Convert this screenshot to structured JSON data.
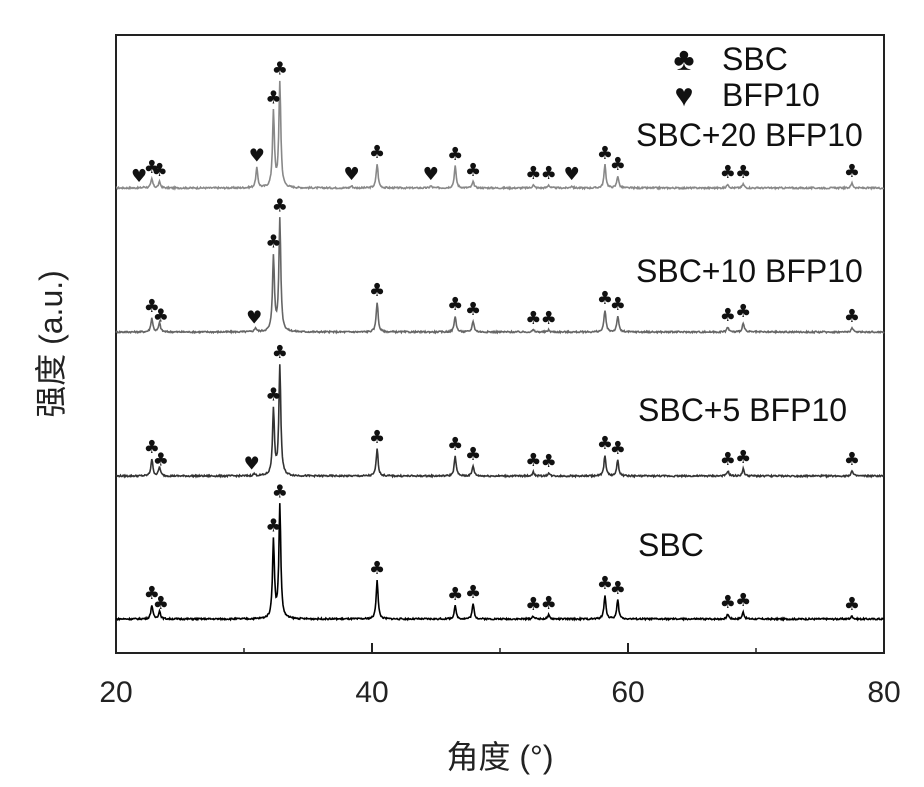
{
  "chart_data": {
    "type": "line",
    "title": "",
    "xlabel": "角度 (°)",
    "ylabel": "强度 (a.u.)",
    "xlim": [
      20,
      80
    ],
    "x_ticks": [
      20,
      40,
      60,
      80
    ],
    "x_tick_labels": [
      "20",
      "40",
      "60",
      "80"
    ],
    "y_ticks_shown": false,
    "grid": false,
    "legend": {
      "placement": "top-right",
      "entries": [
        {
          "symbol": "club",
          "glyph": "♣",
          "label": "SBC"
        },
        {
          "symbol": "heart",
          "glyph": "♥",
          "label": "BFP10"
        }
      ]
    },
    "series": [
      {
        "name": "SBC+20 BFP10",
        "color": "#888888",
        "baseline": 188,
        "peaks": [
          {
            "x": 22.2,
            "h": 1
          },
          {
            "x": 22.8,
            "h": 9
          },
          {
            "x": 23.4,
            "h": 6
          },
          {
            "x": 31.0,
            "h": 20
          },
          {
            "x": 32.3,
            "h": 75
          },
          {
            "x": 32.8,
            "h": 105
          },
          {
            "x": 38.4,
            "h": 2
          },
          {
            "x": 40.4,
            "h": 24
          },
          {
            "x": 44.6,
            "h": 2
          },
          {
            "x": 46.5,
            "h": 22
          },
          {
            "x": 47.9,
            "h": 6
          },
          {
            "x": 52.6,
            "h": 3
          },
          {
            "x": 53.8,
            "h": 3
          },
          {
            "x": 55.6,
            "h": 2
          },
          {
            "x": 58.2,
            "h": 23
          },
          {
            "x": 59.2,
            "h": 12
          },
          {
            "x": 67.8,
            "h": 4
          },
          {
            "x": 69.0,
            "h": 4
          },
          {
            "x": 77.5,
            "h": 5
          }
        ],
        "markers": [
          {
            "x": 21.8,
            "m": "heart"
          },
          {
            "x": 22.8,
            "m": "club"
          },
          {
            "x": 23.4,
            "m": "club"
          },
          {
            "x": 31.0,
            "m": "heart"
          },
          {
            "x": 32.3,
            "m": "club"
          },
          {
            "x": 32.8,
            "m": "club"
          },
          {
            "x": 38.4,
            "m": "heart"
          },
          {
            "x": 40.4,
            "m": "club"
          },
          {
            "x": 44.6,
            "m": "heart"
          },
          {
            "x": 46.5,
            "m": "club"
          },
          {
            "x": 47.9,
            "m": "club"
          },
          {
            "x": 52.6,
            "m": "club"
          },
          {
            "x": 53.8,
            "m": "club"
          },
          {
            "x": 55.6,
            "m": "heart"
          },
          {
            "x": 58.2,
            "m": "club"
          },
          {
            "x": 59.2,
            "m": "club"
          },
          {
            "x": 67.8,
            "m": "club"
          },
          {
            "x": 69.0,
            "m": "club"
          },
          {
            "x": 77.5,
            "m": "club"
          }
        ]
      },
      {
        "name": "SBC+10 BFP10",
        "color": "#666666",
        "baseline": 332,
        "peaks": [
          {
            "x": 22.8,
            "h": 14
          },
          {
            "x": 23.4,
            "h": 9
          },
          {
            "x": 30.9,
            "h": 4
          },
          {
            "x": 32.3,
            "h": 75
          },
          {
            "x": 32.8,
            "h": 112
          },
          {
            "x": 40.4,
            "h": 30
          },
          {
            "x": 46.5,
            "h": 16
          },
          {
            "x": 47.9,
            "h": 11
          },
          {
            "x": 52.6,
            "h": 2
          },
          {
            "x": 53.8,
            "h": 2
          },
          {
            "x": 58.2,
            "h": 22
          },
          {
            "x": 59.2,
            "h": 16
          },
          {
            "x": 67.8,
            "h": 5
          },
          {
            "x": 69.0,
            "h": 9
          },
          {
            "x": 77.5,
            "h": 4
          }
        ],
        "markers": [
          {
            "x": 22.8,
            "m": "club"
          },
          {
            "x": 23.5,
            "m": "club"
          },
          {
            "x": 30.8,
            "m": "heart"
          },
          {
            "x": 32.3,
            "m": "club"
          },
          {
            "x": 32.8,
            "m": "club"
          },
          {
            "x": 40.4,
            "m": "club"
          },
          {
            "x": 46.5,
            "m": "club"
          },
          {
            "x": 47.9,
            "m": "club"
          },
          {
            "x": 52.6,
            "m": "club"
          },
          {
            "x": 53.8,
            "m": "club"
          },
          {
            "x": 58.2,
            "m": "club"
          },
          {
            "x": 59.2,
            "m": "club"
          },
          {
            "x": 67.8,
            "m": "club"
          },
          {
            "x": 69.0,
            "m": "club"
          },
          {
            "x": 77.5,
            "m": "club"
          }
        ]
      },
      {
        "name": "SBC+5 BFP10",
        "color": "#333333",
        "baseline": 476,
        "peaks": [
          {
            "x": 22.8,
            "h": 17
          },
          {
            "x": 23.4,
            "h": 9
          },
          {
            "x": 30.8,
            "h": 2
          },
          {
            "x": 32.3,
            "h": 66
          },
          {
            "x": 32.8,
            "h": 110
          },
          {
            "x": 40.4,
            "h": 27
          },
          {
            "x": 46.5,
            "h": 20
          },
          {
            "x": 47.9,
            "h": 10
          },
          {
            "x": 52.6,
            "h": 4
          },
          {
            "x": 53.8,
            "h": 3
          },
          {
            "x": 58.2,
            "h": 21
          },
          {
            "x": 59.2,
            "h": 16
          },
          {
            "x": 67.8,
            "h": 5
          },
          {
            "x": 69.0,
            "h": 7
          },
          {
            "x": 77.5,
            "h": 5
          }
        ],
        "markers": [
          {
            "x": 22.8,
            "m": "club"
          },
          {
            "x": 23.5,
            "m": "club"
          },
          {
            "x": 30.6,
            "m": "heart"
          },
          {
            "x": 32.3,
            "m": "club"
          },
          {
            "x": 32.8,
            "m": "club"
          },
          {
            "x": 40.4,
            "m": "club"
          },
          {
            "x": 46.5,
            "m": "club"
          },
          {
            "x": 47.9,
            "m": "club"
          },
          {
            "x": 52.6,
            "m": "club"
          },
          {
            "x": 53.8,
            "m": "club"
          },
          {
            "x": 58.2,
            "m": "club"
          },
          {
            "x": 59.2,
            "m": "club"
          },
          {
            "x": 67.8,
            "m": "club"
          },
          {
            "x": 69.0,
            "m": "club"
          },
          {
            "x": 77.5,
            "m": "club"
          }
        ]
      },
      {
        "name": "SBC",
        "color": "#000000",
        "baseline": 619,
        "peaks": [
          {
            "x": 22.8,
            "h": 14
          },
          {
            "x": 23.4,
            "h": 8
          },
          {
            "x": 32.3,
            "h": 78
          },
          {
            "x": 32.8,
            "h": 113
          },
          {
            "x": 40.4,
            "h": 39
          },
          {
            "x": 46.5,
            "h": 13
          },
          {
            "x": 47.9,
            "h": 15
          },
          {
            "x": 52.6,
            "h": 3
          },
          {
            "x": 53.8,
            "h": 4
          },
          {
            "x": 58.2,
            "h": 24
          },
          {
            "x": 59.2,
            "h": 19
          },
          {
            "x": 67.8,
            "h": 5
          },
          {
            "x": 69.0,
            "h": 7
          },
          {
            "x": 77.5,
            "h": 3
          }
        ],
        "markers": [
          {
            "x": 22.8,
            "m": "club"
          },
          {
            "x": 23.5,
            "m": "club"
          },
          {
            "x": 32.3,
            "m": "club"
          },
          {
            "x": 32.8,
            "m": "club"
          },
          {
            "x": 40.4,
            "m": "club"
          },
          {
            "x": 46.5,
            "m": "club"
          },
          {
            "x": 47.9,
            "m": "club"
          },
          {
            "x": 52.6,
            "m": "club"
          },
          {
            "x": 53.8,
            "m": "club"
          },
          {
            "x": 58.2,
            "m": "club"
          },
          {
            "x": 59.2,
            "m": "club"
          },
          {
            "x": 67.8,
            "m": "club"
          },
          {
            "x": 69.0,
            "m": "club"
          },
          {
            "x": 77.5,
            "m": "club"
          }
        ]
      }
    ]
  }
}
